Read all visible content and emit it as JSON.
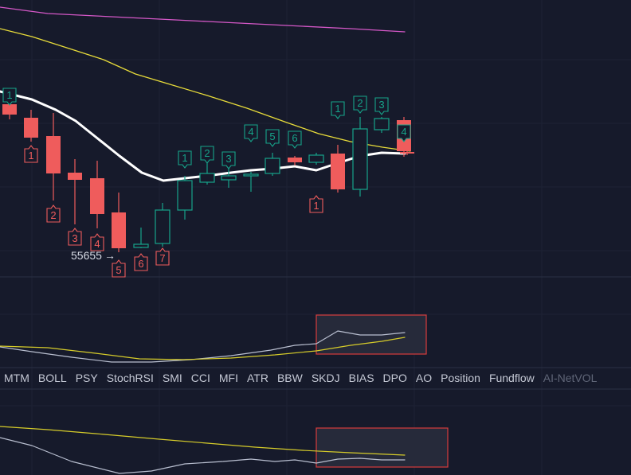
{
  "chart_data": {
    "type": "candlestick",
    "low_price_label": "55655",
    "low_price_arrow": "→",
    "colors": {
      "background": "#161a2b",
      "up": "#16a48a",
      "down": "#ef5c5c",
      "ma_fast": "#ffffff",
      "ma_mid": "#e8dc3a",
      "ma_slow": "#d558c8",
      "osc_line": "#b9bfd0",
      "osc_signal": "#d6cc2a",
      "highlight_border": "#d83c3c"
    },
    "count_labels_below": [
      {
        "candle": 1,
        "text": "1"
      },
      {
        "candle": 3,
        "text": "2"
      },
      {
        "candle": 4,
        "text": "3"
      },
      {
        "candle": 5,
        "text": "4"
      },
      {
        "candle": 6,
        "text": "5"
      },
      {
        "candle": 7,
        "text": "6"
      },
      {
        "candle": 8,
        "text": "7"
      },
      {
        "candle": 16,
        "text": "1"
      }
    ],
    "count_labels_above": [
      {
        "candle": 0,
        "text": "1"
      },
      {
        "candle": 9,
        "text": "1"
      },
      {
        "candle": 10,
        "text": "2"
      },
      {
        "candle": 11,
        "text": "3"
      },
      {
        "candle": 12,
        "text": "4"
      },
      {
        "candle": 13,
        "text": "5"
      },
      {
        "candle": 14,
        "text": "6"
      },
      {
        "candle": 17,
        "text": "1"
      },
      {
        "candle": 18,
        "text": "2"
      },
      {
        "candle": 19,
        "text": "3"
      },
      {
        "candle": 20,
        "text": "4"
      }
    ]
  },
  "indicator_tabs": [
    {
      "label": "MTM",
      "dim": false
    },
    {
      "label": "BOLL",
      "dim": false
    },
    {
      "label": "PSY",
      "dim": false
    },
    {
      "label": "StochRSI",
      "dim": false
    },
    {
      "label": "SMI",
      "dim": false
    },
    {
      "label": "CCI",
      "dim": false
    },
    {
      "label": "MFI",
      "dim": false
    },
    {
      "label": "ATR",
      "dim": false
    },
    {
      "label": "BBW",
      "dim": false
    },
    {
      "label": "SKDJ",
      "dim": false
    },
    {
      "label": "BIAS",
      "dim": false
    },
    {
      "label": "DPO",
      "dim": false
    },
    {
      "label": "AO",
      "dim": false
    },
    {
      "label": "Position",
      "dim": false
    },
    {
      "label": "Fundflow",
      "dim": false
    },
    {
      "label": "AI-NetVOL",
      "dim": true
    }
  ]
}
